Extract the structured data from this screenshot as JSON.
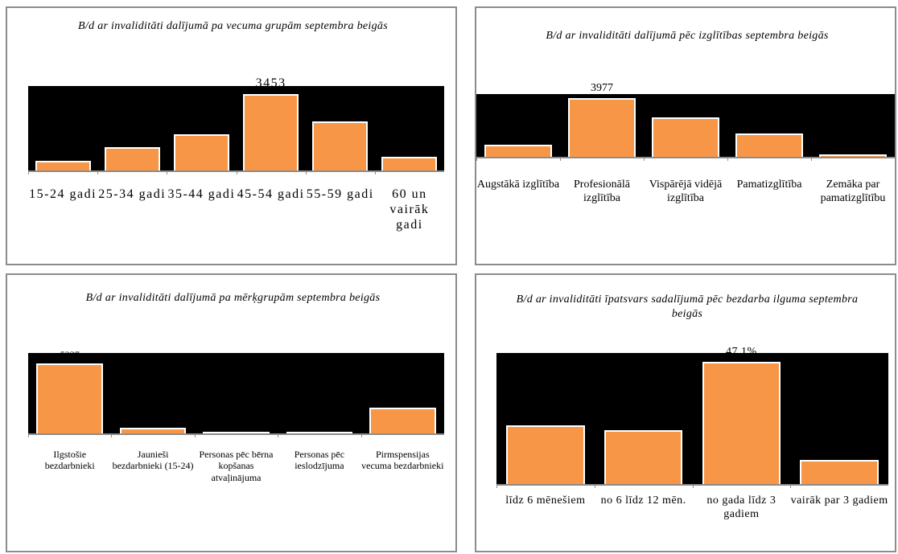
{
  "chart_data": [
    {
      "type": "bar",
      "title": "B/d ar invaliditāti dalījumā pa vecuma grupām septembra beigās",
      "categories": [
        "15-24 gadi",
        "25-34 gadi",
        "35-44 gadi",
        "45-54 gadi",
        "55-59 gadi",
        "60 un vairāk gadi"
      ],
      "values": [
        436,
        1054,
        1636,
        3453,
        2217,
        618
      ],
      "value_labels": [
        null,
        null,
        null,
        "3453",
        null,
        null
      ],
      "color": "#f79646",
      "ylim": [
        0,
        3800
      ]
    },
    {
      "type": "bar",
      "title": "B/d ar invaliditāti dalījumā pēc izglītības septembra beigās",
      "categories": [
        "Augstākā izglītība",
        "Profesionālā izglītība",
        "Vispārējā vidējā izglītība",
        "Pamatizglītība",
        "Zemāka par pamatizglītību"
      ],
      "values": [
        817,
        3977,
        2670,
        1580,
        163
      ],
      "value_labels": [
        null,
        "3977",
        null,
        null,
        null
      ],
      "color": "#f79646",
      "ylim": [
        0,
        4250
      ]
    },
    {
      "type": "bar",
      "title": "B/d ar invaliditāti dalījumā pa mērķgrupām septembra beigās",
      "categories": [
        "Ilgstošie bezdarbnieki",
        "Jaunieši bezdarbnieki (15-24)",
        "Personas pēc bērna kopšanas atvaļinājuma",
        "Personas pēc ieslodzījuma",
        "Pirmspensijas vecuma bezdarbnieki"
      ],
      "values": [
        5237,
        421,
        120,
        120,
        1926
      ],
      "value_labels": [
        "5237",
        null,
        null,
        null,
        null
      ],
      "color": "#f79646",
      "ylim": [
        0,
        6000
      ]
    },
    {
      "type": "bar",
      "title": "B/d ar invaliditāti īpatsvars sadalījumā pēc bezdarba ilguma septembra beigās",
      "categories": [
        "līdz 6 mēnešiem",
        "no 6 līdz 12 mēn.",
        "no gada līdz 3 gadiem",
        "vairāk par 3 gadiem"
      ],
      "values": [
        22.6,
        20.9,
        47.1,
        9.4
      ],
      "value_labels": [
        null,
        null,
        "47,1%",
        null
      ],
      "color": "#f79646",
      "ylim": [
        0,
        50.5
      ]
    }
  ]
}
